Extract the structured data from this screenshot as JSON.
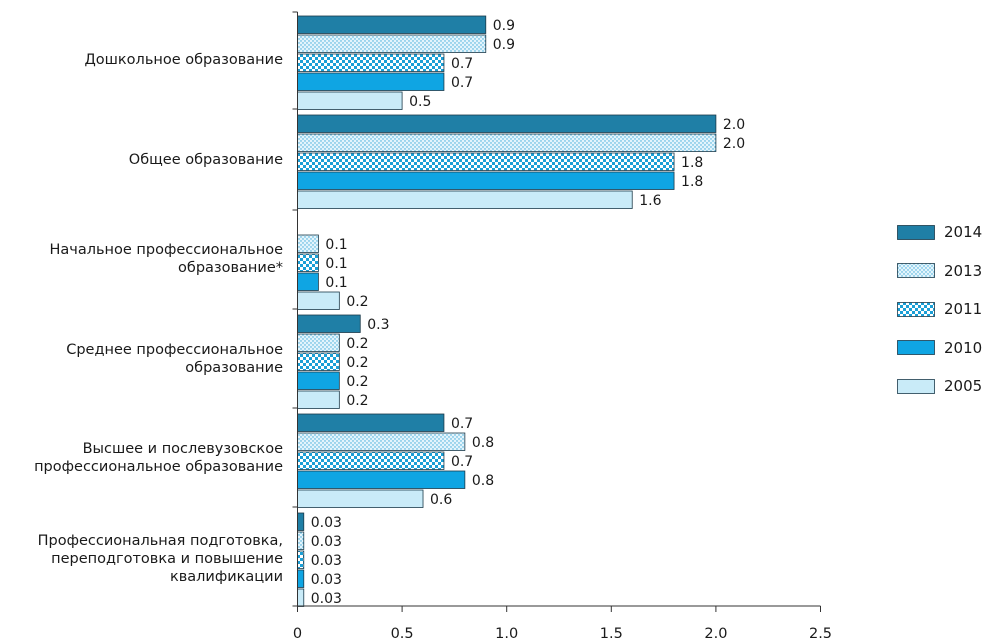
{
  "chart_data": {
    "type": "bar",
    "orientation": "horizontal",
    "categories": [
      [
        "Дошкольное образование"
      ],
      [
        "Общее образование"
      ],
      [
        "Начальное профессиональное",
        "образование*"
      ],
      [
        "Среднее профессиональное",
        "образование"
      ],
      [
        "Высшее и послевузовское",
        "профессиональное образование"
      ],
      [
        "Профессиональная подготовка,",
        "переподготовка и повышение",
        "квалификации"
      ]
    ],
    "series": [
      {
        "name": "2014",
        "color": "#1f7fa6",
        "pattern": "solid",
        "values": [
          0.9,
          2.0,
          null,
          0.3,
          0.7,
          0.03
        ],
        "labels": [
          "0.9",
          "2.0",
          "",
          "0.3",
          "0.7",
          "0.03"
        ]
      },
      {
        "name": "2013",
        "color": "#dff2fb",
        "pattern": "dots",
        "values": [
          0.9,
          2.0,
          0.1,
          0.2,
          0.8,
          0.03
        ],
        "labels": [
          "0.9",
          "2.0",
          "0.1",
          "0.2",
          "0.8",
          "0.03"
        ]
      },
      {
        "name": "2011",
        "color": "#1aa6dc",
        "pattern": "checker",
        "values": [
          0.7,
          1.8,
          0.1,
          0.2,
          0.7,
          0.03
        ],
        "labels": [
          "0.7",
          "1.8",
          "0.1",
          "0.2",
          "0.7",
          "0.03"
        ]
      },
      {
        "name": "2010",
        "color": "#0fa5e3",
        "pattern": "solid",
        "values": [
          0.7,
          1.8,
          0.1,
          0.2,
          0.8,
          0.03
        ],
        "labels": [
          "0.7",
          "1.8",
          "0.1",
          "0.2",
          "0.8",
          "0.03"
        ]
      },
      {
        "name": "2005",
        "color": "#c9ebf8",
        "pattern": "solid",
        "values": [
          0.5,
          1.6,
          0.2,
          0.2,
          0.6,
          0.03
        ],
        "labels": [
          "0.5",
          "1.6",
          "0.2",
          "0.2",
          "0.6",
          "0.03"
        ]
      }
    ],
    "xlim": [
      0,
      2.5
    ],
    "xticks": [
      "0",
      "0.5",
      "1.0",
      "1.5",
      "2.0",
      "2.5"
    ],
    "grid": false,
    "legend_position": "right"
  }
}
